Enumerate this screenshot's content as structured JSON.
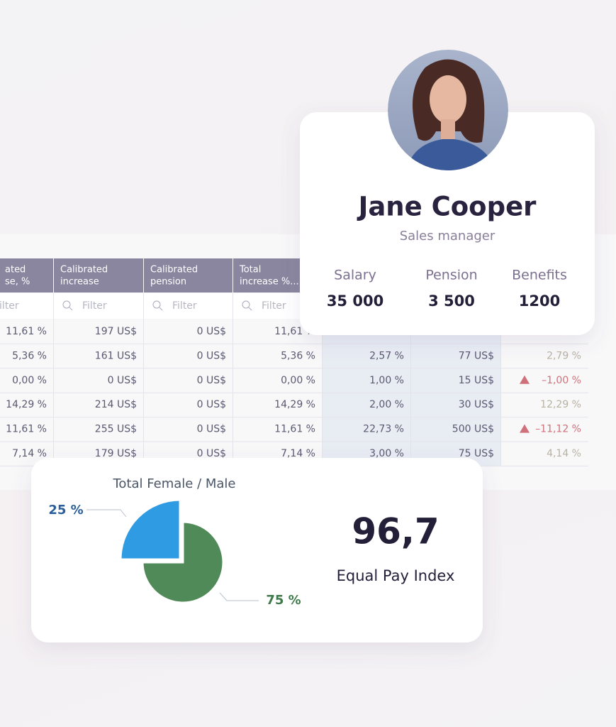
{
  "profile": {
    "name": "Jane Cooper",
    "role": "Sales manager",
    "stats": [
      {
        "label": "Salary",
        "value": "35 000"
      },
      {
        "label": "Pension",
        "value": "3 500"
      },
      {
        "label": "Benefits",
        "value": "1200"
      }
    ]
  },
  "table": {
    "headers": [
      [
        "ated",
        "se, %"
      ],
      [
        "Calibrated",
        "increase"
      ],
      [
        "Calibrated",
        "pension"
      ],
      [
        "Total",
        "increase %..."
      ]
    ],
    "filter": "Filter",
    "rows": [
      [
        "11,61 %",
        "197 US$",
        "0 US$",
        "11,61 %"
      ],
      [
        "5,36 %",
        "161 US$",
        "0 US$",
        "5,36 %",
        "2,57 %",
        "77 US$",
        "2,79 %"
      ],
      [
        "0,00 %",
        "0 US$",
        "0 US$",
        "0,00 %",
        "1,00 %",
        "15 US$",
        "–1,00 %"
      ],
      [
        "14,29 %",
        "214 US$",
        "0 US$",
        "14,29 %",
        "2,00 %",
        "30 US$",
        "12,29 %"
      ],
      [
        "11,61 %",
        "255 US$",
        "0 US$",
        "11,61 %",
        "22,73 %",
        "500 US$",
        "–11,12 %"
      ],
      [
        "7,14 %",
        "179 US$",
        "0 US$",
        "7,14 %",
        "3,00 %",
        "75 US$",
        "4,14 %"
      ]
    ]
  },
  "chart_data": {
    "type": "pie",
    "title": "Total Female / Male",
    "values": [
      25,
      75
    ],
    "value_labels": [
      "25 %",
      "75 %"
    ],
    "colors": [
      "#2f9be3",
      "#4f8a58"
    ]
  },
  "index": {
    "value": "96,7",
    "label": "Equal Pay Index"
  }
}
